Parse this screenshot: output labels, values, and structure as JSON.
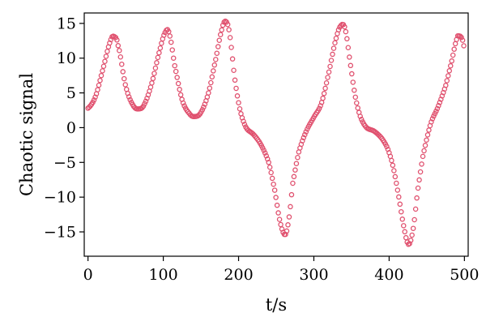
{
  "chart_data": {
    "type": "scatter",
    "title": "",
    "xlabel": "t/s",
    "ylabel": "Chaotic signal",
    "xlim": [
      -5,
      505
    ],
    "ylim": [
      -18.5,
      16.5
    ],
    "xticks": [
      "0",
      "100",
      "200",
      "300",
      "400",
      "500"
    ],
    "yticks": [
      "15",
      "10",
      "5",
      "0",
      "−5",
      "−10",
      "−15"
    ],
    "xtick_values": [
      0,
      100,
      200,
      300,
      400,
      500
    ],
    "ytick_values": [
      15,
      10,
      5,
      0,
      -5,
      -10,
      -15
    ],
    "grid": false,
    "marker": "open-circle",
    "series": [
      {
        "color": "#e0506e",
        "keypoints": [
          [
            0,
            2.8
          ],
          [
            10,
            4.5
          ],
          [
            20,
            8.5
          ],
          [
            30,
            12.5
          ],
          [
            35,
            13.1
          ],
          [
            40,
            11.8
          ],
          [
            50,
            6.0
          ],
          [
            60,
            3.2
          ],
          [
            68,
            2.7
          ],
          [
            75,
            3.4
          ],
          [
            85,
            6.5
          ],
          [
            95,
            11.0
          ],
          [
            103,
            13.8
          ],
          [
            108,
            13.5
          ],
          [
            115,
            9.0
          ],
          [
            125,
            4.0
          ],
          [
            135,
            2.0
          ],
          [
            142,
            1.6
          ],
          [
            150,
            2.2
          ],
          [
            160,
            5.0
          ],
          [
            170,
            10.0
          ],
          [
            178,
            14.2
          ],
          [
            183,
            15.3
          ],
          [
            188,
            13.5
          ],
          [
            195,
            7.0
          ],
          [
            202,
            2.5
          ],
          [
            210,
            0.0
          ],
          [
            220,
            -1.0
          ],
          [
            230,
            -2.5
          ],
          [
            240,
            -5.0
          ],
          [
            248,
            -9.0
          ],
          [
            255,
            -13.5
          ],
          [
            262,
            -15.4
          ],
          [
            267,
            -13.0
          ],
          [
            272,
            -8.0
          ],
          [
            280,
            -3.5
          ],
          [
            290,
            -0.5
          ],
          [
            300,
            1.5
          ],
          [
            310,
            3.5
          ],
          [
            320,
            8.0
          ],
          [
            330,
            13.0
          ],
          [
            337,
            14.8
          ],
          [
            342,
            14.0
          ],
          [
            348,
            9.5
          ],
          [
            355,
            4.5
          ],
          [
            362,
            1.5
          ],
          [
            370,
            0.0
          ],
          [
            380,
            -0.5
          ],
          [
            390,
            -1.5
          ],
          [
            398,
            -3.0
          ],
          [
            405,
            -5.5
          ],
          [
            412,
            -9.5
          ],
          [
            420,
            -14.5
          ],
          [
            426,
            -16.8
          ],
          [
            432,
            -14.5
          ],
          [
            438,
            -9.0
          ],
          [
            445,
            -4.0
          ],
          [
            455,
            0.5
          ],
          [
            465,
            3.0
          ],
          [
            475,
            6.0
          ],
          [
            483,
            9.5
          ],
          [
            490,
            12.8
          ],
          [
            493,
            13.2
          ],
          [
            497,
            12.8
          ],
          [
            500,
            11.5
          ]
        ]
      }
    ]
  }
}
